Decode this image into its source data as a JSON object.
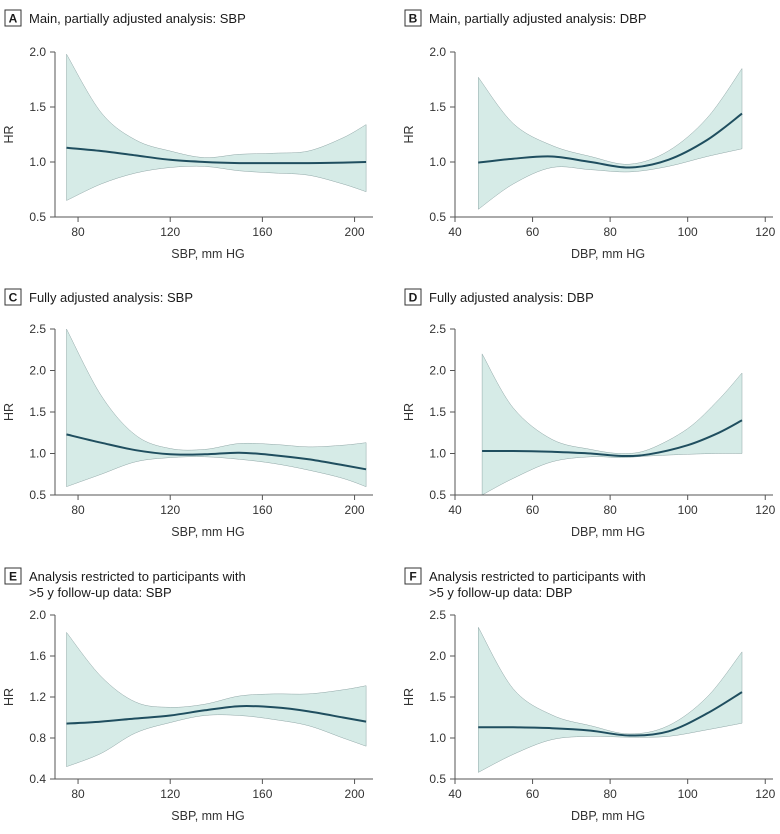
{
  "colors": {
    "line": "#1f4e5f",
    "band": "#d6ebe7",
    "band_edge": "#8fa6a6",
    "axis": "#555555"
  },
  "chart_data": [
    {
      "letter": "A",
      "title": [
        "Main, partially adjusted analysis: SBP"
      ],
      "type": "line",
      "xlabel": "SBP, mm HG",
      "ylabel": "HR",
      "xlim": [
        70,
        208
      ],
      "ylim": [
        0.5,
        2.0
      ],
      "xticks": [
        80,
        120,
        160,
        200
      ],
      "yticks": [
        0.5,
        1.0,
        1.5,
        2.0
      ],
      "ytick_decimals": 1,
      "x": [
        75,
        90,
        105,
        120,
        135,
        150,
        165,
        180,
        195,
        205
      ],
      "hr": [
        1.13,
        1.1,
        1.06,
        1.02,
        1.0,
        0.99,
        0.99,
        0.99,
        0.995,
        1.0
      ],
      "lower": [
        0.65,
        0.8,
        0.9,
        0.95,
        0.96,
        0.92,
        0.9,
        0.88,
        0.8,
        0.73
      ],
      "upper": [
        1.98,
        1.45,
        1.2,
        1.1,
        1.04,
        1.07,
        1.08,
        1.1,
        1.22,
        1.34
      ]
    },
    {
      "letter": "B",
      "title": [
        "Main, partially adjusted analysis: DBP"
      ],
      "type": "line",
      "xlabel": "DBP, mm HG",
      "ylabel": "HR",
      "xlim": [
        40,
        122
      ],
      "ylim": [
        0.5,
        2.0
      ],
      "xticks": [
        40,
        60,
        80,
        100,
        120
      ],
      "yticks": [
        0.5,
        1.0,
        1.5,
        2.0
      ],
      "ytick_decimals": 1,
      "x": [
        46,
        55,
        65,
        75,
        85,
        95,
        105,
        114
      ],
      "hr": [
        0.995,
        1.03,
        1.05,
        1.0,
        0.95,
        1.02,
        1.2,
        1.44
      ],
      "lower": [
        0.57,
        0.8,
        0.95,
        0.93,
        0.91,
        0.96,
        1.05,
        1.12
      ],
      "upper": [
        1.77,
        1.35,
        1.15,
        1.05,
        0.98,
        1.1,
        1.4,
        1.85
      ]
    },
    {
      "letter": "C",
      "title": [
        "Fully adjusted analysis: SBP"
      ],
      "type": "line",
      "xlabel": "SBP, mm HG",
      "ylabel": "HR",
      "xlim": [
        70,
        208
      ],
      "ylim": [
        0.5,
        2.5
      ],
      "xticks": [
        80,
        120,
        160,
        200
      ],
      "yticks": [
        0.5,
        1.0,
        1.5,
        2.0,
        2.5
      ],
      "ytick_decimals": 1,
      "x": [
        75,
        90,
        105,
        120,
        135,
        150,
        165,
        180,
        195,
        205
      ],
      "hr": [
        1.23,
        1.13,
        1.04,
        0.99,
        0.99,
        1.01,
        0.98,
        0.93,
        0.86,
        0.81
      ],
      "lower": [
        0.6,
        0.75,
        0.9,
        0.95,
        0.96,
        0.93,
        0.88,
        0.8,
        0.7,
        0.6
      ],
      "upper": [
        2.5,
        1.7,
        1.22,
        1.06,
        1.05,
        1.12,
        1.11,
        1.08,
        1.1,
        1.13
      ]
    },
    {
      "letter": "D",
      "title": [
        "Fully adjusted analysis: DBP"
      ],
      "type": "line",
      "xlabel": "DBP, mm HG",
      "ylabel": "HR",
      "xlim": [
        40,
        122
      ],
      "ylim": [
        0.5,
        2.5
      ],
      "xticks": [
        40,
        60,
        80,
        100,
        120
      ],
      "yticks": [
        0.5,
        1.0,
        1.5,
        2.0,
        2.5
      ],
      "ytick_decimals": 1,
      "x": [
        47,
        55,
        65,
        75,
        83,
        90,
        100,
        108,
        114
      ],
      "hr": [
        1.03,
        1.03,
        1.02,
        1.0,
        0.97,
        0.99,
        1.1,
        1.25,
        1.4
      ],
      "lower": [
        0.5,
        0.7,
        0.9,
        0.96,
        0.95,
        0.97,
        0.99,
        1.0,
        1.0
      ],
      "upper": [
        2.2,
        1.55,
        1.17,
        1.05,
        1.0,
        1.05,
        1.3,
        1.65,
        1.97
      ]
    },
    {
      "letter": "E",
      "title": [
        "Analysis restricted to participants with",
        ">5 y follow-up data: SBP"
      ],
      "type": "line",
      "xlabel": "SBP, mm HG",
      "ylabel": "HR",
      "xlim": [
        70,
        208
      ],
      "ylim": [
        0.4,
        2.0
      ],
      "xticks": [
        80,
        120,
        160,
        200
      ],
      "yticks": [
        0.4,
        0.8,
        1.2,
        1.6,
        2.0
      ],
      "ytick_decimals": 1,
      "x": [
        75,
        90,
        105,
        120,
        135,
        150,
        165,
        180,
        195,
        205
      ],
      "hr": [
        0.94,
        0.96,
        0.99,
        1.02,
        1.07,
        1.11,
        1.1,
        1.06,
        1.0,
        0.96
      ],
      "lower": [
        0.52,
        0.65,
        0.85,
        0.95,
        1.02,
        1.02,
        0.98,
        0.92,
        0.8,
        0.72
      ],
      "upper": [
        1.83,
        1.4,
        1.15,
        1.1,
        1.13,
        1.21,
        1.23,
        1.23,
        1.27,
        1.31
      ]
    },
    {
      "letter": "F",
      "title": [
        "Analysis restricted to participants with",
        ">5 y follow-up data: DBP"
      ],
      "type": "line",
      "xlabel": "DBP, mm HG",
      "ylabel": "HR",
      "xlim": [
        40,
        122
      ],
      "ylim": [
        0.5,
        2.5
      ],
      "xticks": [
        40,
        60,
        80,
        100,
        120
      ],
      "yticks": [
        0.5,
        1.0,
        1.5,
        2.0,
        2.5
      ],
      "ytick_decimals": 1,
      "x": [
        46,
        55,
        65,
        75,
        85,
        95,
        105,
        114
      ],
      "hr": [
        1.13,
        1.13,
        1.12,
        1.09,
        1.03,
        1.08,
        1.3,
        1.56
      ],
      "lower": [
        0.58,
        0.8,
        0.98,
        1.02,
        1.01,
        1.02,
        1.1,
        1.18
      ],
      "upper": [
        2.35,
        1.6,
        1.28,
        1.15,
        1.05,
        1.15,
        1.5,
        2.05
      ]
    }
  ]
}
